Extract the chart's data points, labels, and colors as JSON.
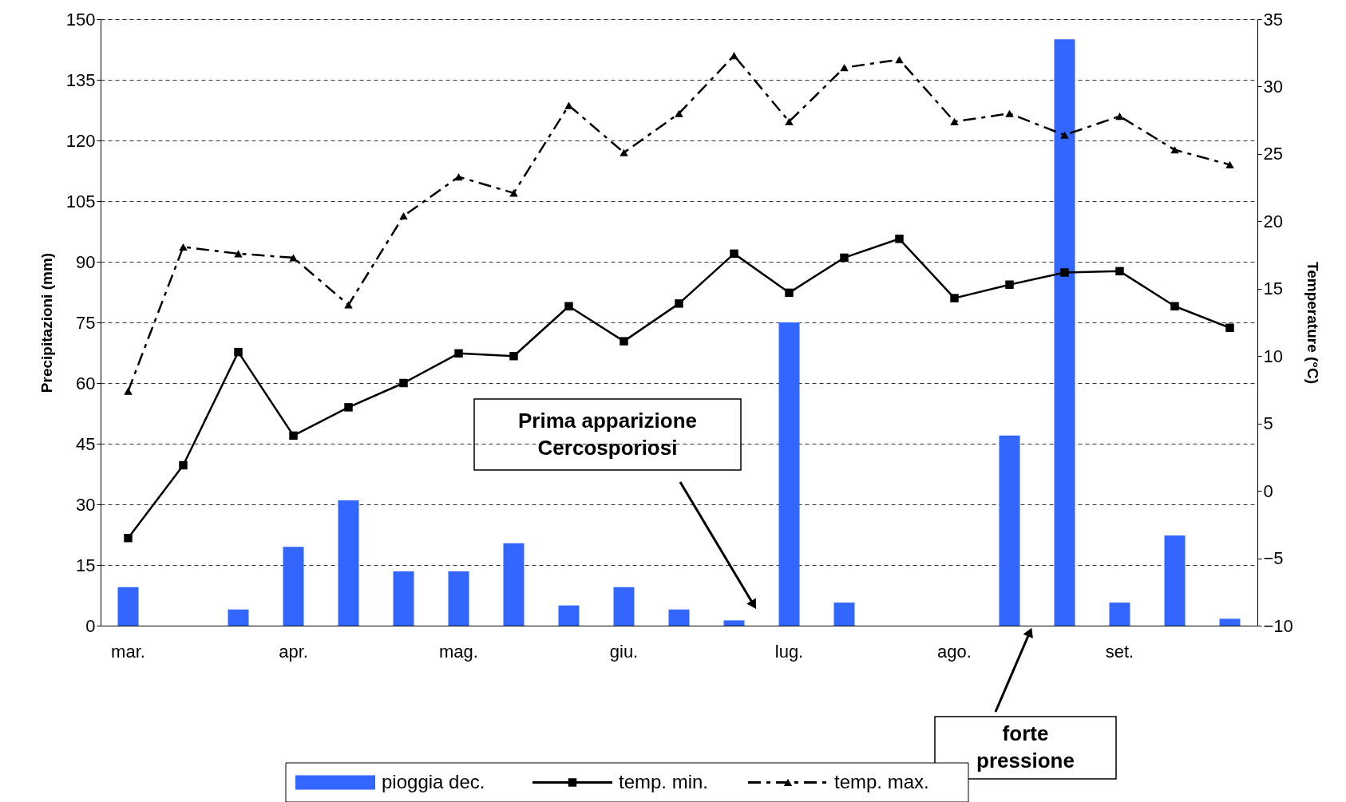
{
  "chart_data": {
    "type": "bar",
    "categories": [
      "mar.",
      null,
      null,
      "apr.",
      null,
      null,
      "mag.",
      null,
      null,
      "giu.",
      null,
      null,
      "lug.",
      null,
      null,
      "ago.",
      null,
      null,
      "set.",
      null,
      null
    ],
    "ylabel": "Precipitazioni (mm)",
    "y2label": "Temperature (°C)",
    "ylim": [
      0,
      150
    ],
    "yticks": [
      0,
      15,
      30,
      45,
      60,
      75,
      90,
      105,
      120,
      135,
      150
    ],
    "y2lim": [
      -10,
      35
    ],
    "y2ticks": [
      -10,
      -5,
      0,
      5,
      10,
      15,
      20,
      25,
      30,
      35
    ],
    "grid": "y",
    "legend": "bottom",
    "annotations": [
      "Prima apparizione\nCercosporiosi",
      "forte\npressione"
    ],
    "series": [
      {
        "name": "pioggia dec.",
        "color": "#3366ff",
        "values": [
          9.5,
          null,
          4,
          19.5,
          31,
          13.4,
          13.4,
          20.4,
          5,
          9.5,
          4,
          1.3,
          75,
          5.7,
          null,
          null,
          47,
          145,
          5.7,
          22.3,
          1.7
        ]
      },
      {
        "name": "temp. min.",
        "type": "line",
        "axis": "y2",
        "color": "#000000",
        "marker": "square",
        "line_style": "solid",
        "values": [
          -3.5,
          1.9,
          10.3,
          4.1,
          6.2,
          8.0,
          10.2,
          10.0,
          13.7,
          11.1,
          13.9,
          17.6,
          14.7,
          17.3,
          18.7,
          14.3,
          15.3,
          16.2,
          16.3,
          13.7,
          12.1
        ]
      },
      {
        "name": "temp. max.",
        "type": "line",
        "axis": "y2",
        "color": "#000000",
        "marker": "triangle",
        "line_style": "dashed",
        "values": [
          7.4,
          18.1,
          17.6,
          17.3,
          13.8,
          20.4,
          23.3,
          22.1,
          28.6,
          25.1,
          28.0,
          32.3,
          27.4,
          31.4,
          32.0,
          27.4,
          28.0,
          26.4,
          27.8,
          25.3,
          24.2
        ]
      }
    ]
  }
}
